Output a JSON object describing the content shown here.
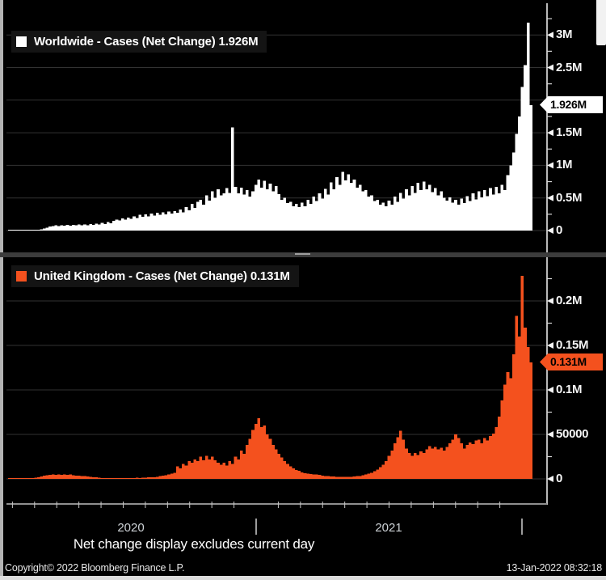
{
  "panels": [
    {
      "id": "worldwide",
      "legend": {
        "label": "Worldwide - Cases (Net Change) 1.926M",
        "swatch_color": "#ffffff"
      },
      "series_color": "#ffffff",
      "last_value_tag": {
        "text": "1.926M",
        "bg": "#ffffff",
        "fg": "#000000"
      },
      "yticks": [
        {
          "value": 3,
          "label": "3M"
        },
        {
          "value": 2.5,
          "label": "2.5M"
        },
        {
          "value": 1.5,
          "label": "1.5M"
        },
        {
          "value": 1,
          "label": "1M"
        },
        {
          "value": 0.5,
          "label": "0.5M"
        },
        {
          "value": 0,
          "label": "0"
        }
      ],
      "gridlines": [
        0,
        0.5,
        1,
        1.5,
        2,
        2.5,
        3
      ],
      "yticks_minor": [
        0.25,
        0.75,
        1.25,
        1.75,
        2.25,
        2.75,
        3.25
      ]
    },
    {
      "id": "united-kingdom",
      "legend": {
        "label": "United Kingdom - Cases (Net Change) 0.131M",
        "swatch_color": "#f4511e"
      },
      "series_color": "#f4511e",
      "last_value_tag": {
        "text": "0.131M",
        "bg": "#f4511e",
        "fg": "#000000"
      },
      "yticks": [
        {
          "value": 0.2,
          "label": "0.2M"
        },
        {
          "value": 0.15,
          "label": "0.15M"
        },
        {
          "value": 0.1,
          "label": "0.1M"
        },
        {
          "value": 0.05,
          "label": "50000"
        },
        {
          "value": 0,
          "label": "0"
        }
      ],
      "gridlines": [
        0,
        0.05,
        0.1,
        0.15,
        0.2
      ],
      "yticks_minor": [
        0.025,
        0.075,
        0.125,
        0.175,
        0.225
      ]
    }
  ],
  "chart_data": [
    {
      "type": "bar",
      "name": "Worldwide - Cases (Net Change)",
      "unit": "cases per day, millions",
      "x_range": "late Jan 2020 to 12 Jan 2022, daily",
      "last_value_label": "1.926M",
      "last_value": 1.926,
      "ylim": [
        0,
        3.3
      ],
      "values": [
        0.003,
        0.004,
        0.003,
        0.014,
        0.004,
        0.002,
        0.002,
        0.003,
        0.005,
        0.008,
        0.012,
        0.02,
        0.032,
        0.045,
        0.06,
        0.07,
        0.078,
        0.07,
        0.082,
        0.074,
        0.085,
        0.076,
        0.088,
        0.078,
        0.092,
        0.08,
        0.095,
        0.083,
        0.1,
        0.088,
        0.105,
        0.092,
        0.115,
        0.1,
        0.13,
        0.112,
        0.15,
        0.17,
        0.155,
        0.185,
        0.165,
        0.2,
        0.18,
        0.22,
        0.195,
        0.24,
        0.21,
        0.25,
        0.22,
        0.26,
        0.23,
        0.27,
        0.24,
        0.28,
        0.25,
        0.29,
        0.26,
        0.3,
        0.27,
        0.32,
        0.28,
        0.36,
        0.31,
        0.41,
        0.35,
        0.44,
        0.47,
        0.4,
        0.54,
        0.46,
        0.6,
        0.5,
        0.63,
        0.54,
        0.57,
        0.65,
        0.58,
        1.58,
        0.67,
        0.57,
        0.66,
        0.55,
        0.62,
        0.52,
        0.6,
        0.7,
        0.78,
        0.66,
        0.76,
        0.63,
        0.72,
        0.6,
        0.68,
        0.56,
        0.47,
        0.5,
        0.42,
        0.44,
        0.37,
        0.41,
        0.36,
        0.43,
        0.37,
        0.47,
        0.41,
        0.52,
        0.45,
        0.57,
        0.49,
        0.64,
        0.55,
        0.74,
        0.63,
        0.82,
        0.7,
        0.9,
        0.77,
        0.86,
        0.73,
        0.78,
        0.66,
        0.7,
        0.6,
        0.62,
        0.52,
        0.54,
        0.45,
        0.47,
        0.4,
        0.43,
        0.37,
        0.46,
        0.4,
        0.52,
        0.44,
        0.58,
        0.49,
        0.63,
        0.54,
        0.68,
        0.58,
        0.73,
        0.62,
        0.75,
        0.63,
        0.7,
        0.59,
        0.65,
        0.54,
        0.6,
        0.5,
        0.46,
        0.51,
        0.43,
        0.47,
        0.4,
        0.49,
        0.42,
        0.53,
        0.45,
        0.57,
        0.48,
        0.6,
        0.51,
        0.62,
        0.53,
        0.65,
        0.55,
        0.67,
        0.57,
        0.7,
        0.62,
        0.85,
        1.0,
        1.2,
        1.48,
        1.75,
        2.2,
        2.54,
        3.19,
        1.926
      ]
    },
    {
      "type": "bar",
      "name": "United Kingdom - Cases (Net Change)",
      "unit": "cases per day, millions",
      "x_range": "late Jan 2020 to 12 Jan 2022, daily",
      "last_value_label": "0.131M",
      "last_value": 0.131,
      "ylim": [
        0,
        0.24
      ],
      "values": [
        0.0001,
        0.0001,
        0.0001,
        0.0002,
        0.0002,
        0.0003,
        0.0004,
        0.0006,
        0.001,
        0.0015,
        0.002,
        0.0028,
        0.0035,
        0.0042,
        0.0046,
        0.005,
        0.0045,
        0.0052,
        0.0046,
        0.005,
        0.0044,
        0.0048,
        0.004,
        0.0035,
        0.0038,
        0.003,
        0.0032,
        0.0026,
        0.0024,
        0.002,
        0.0016,
        0.0013,
        0.0011,
        0.001,
        0.0009,
        0.0008,
        0.0007,
        0.0008,
        0.0007,
        0.0008,
        0.0009,
        0.0008,
        0.001,
        0.0011,
        0.0012,
        0.0011,
        0.0013,
        0.0014,
        0.0016,
        0.0018,
        0.002,
        0.0025,
        0.003,
        0.0036,
        0.0042,
        0.005,
        0.006,
        0.007,
        0.014,
        0.012,
        0.017,
        0.015,
        0.02,
        0.018,
        0.022,
        0.02,
        0.025,
        0.021,
        0.026,
        0.022,
        0.025,
        0.021,
        0.018,
        0.016,
        0.018,
        0.015,
        0.02,
        0.017,
        0.025,
        0.022,
        0.032,
        0.028,
        0.038,
        0.045,
        0.055,
        0.062,
        0.068,
        0.058,
        0.06,
        0.05,
        0.045,
        0.038,
        0.033,
        0.028,
        0.024,
        0.02,
        0.017,
        0.014,
        0.012,
        0.01,
        0.009,
        0.0075,
        0.0065,
        0.006,
        0.0055,
        0.005,
        0.0048,
        0.0045,
        0.0038,
        0.0033,
        0.003,
        0.0028,
        0.0026,
        0.0025,
        0.0024,
        0.0022,
        0.0021,
        0.0022,
        0.0024,
        0.0026,
        0.003,
        0.0034,
        0.004,
        0.0048,
        0.0058,
        0.007,
        0.0085,
        0.0105,
        0.013,
        0.016,
        0.02,
        0.026,
        0.032,
        0.04,
        0.047,
        0.054,
        0.044,
        0.034,
        0.029,
        0.026,
        0.029,
        0.027,
        0.031,
        0.029,
        0.033,
        0.037,
        0.034,
        0.036,
        0.033,
        0.035,
        0.032,
        0.036,
        0.04,
        0.044,
        0.05,
        0.046,
        0.04,
        0.034,
        0.038,
        0.041,
        0.039,
        0.043,
        0.044,
        0.04,
        0.046,
        0.043,
        0.048,
        0.051,
        0.058,
        0.07,
        0.088,
        0.106,
        0.12,
        0.113,
        0.14,
        0.183,
        0.16,
        0.228,
        0.17,
        0.148,
        0.131
      ]
    }
  ],
  "xaxis": {
    "year_labels": [
      "2020",
      "2021"
    ]
  },
  "caption": "Net change display excludes current day",
  "footer": {
    "left": "Copyright© 2022 Bloomberg Finance L.P.",
    "right": "13-Jan-2022 08:32:18"
  }
}
